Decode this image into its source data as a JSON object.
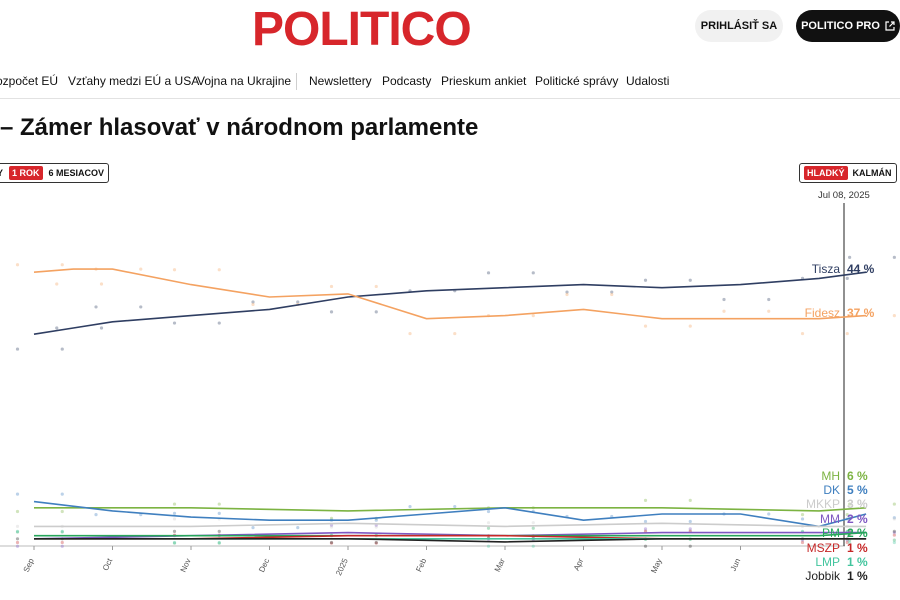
{
  "header": {
    "logo": "POLITICO",
    "login": "PRIHLÁSIŤ SA",
    "pro": "POLITICO PRO",
    "pro_icon": "external-link-icon"
  },
  "nav": {
    "items": [
      "ozpočet EÚ",
      "Vzťahy medzi EÚ a USA",
      "Vojna na Ukrajine",
      "Newslettery",
      "Podcasty",
      "Prieskum ankiet",
      "Politické správy",
      "Udalosti"
    ]
  },
  "page": {
    "title": "– Zámer hlasovať v národnom parlamente",
    "range_options": [
      "Y",
      "1 ROK",
      "6 MESIACOV"
    ],
    "range_active": "1 ROK",
    "smooth_options": [
      "HLADKÝ",
      "KALMÁN"
    ],
    "smooth_active": "HLADKÝ",
    "cursor_date": "Jul 08, 2025"
  },
  "chart_data": {
    "type": "line",
    "x_ticks": [
      "Sep",
      "Oct",
      "Nov",
      "Dec",
      "2025",
      "Feb",
      "Mar",
      "Apr",
      "May",
      "Jun"
    ],
    "ylim": [
      0,
      50
    ],
    "series": [
      {
        "name": "Tisza",
        "label": "44 %",
        "color": "#2f3e62",
        "x": [
          0,
          0.5,
          1,
          2,
          3,
          4,
          5,
          6,
          7,
          8,
          9,
          10,
          10.6
        ],
        "y": [
          34,
          35,
          36,
          37,
          38,
          40,
          41,
          41.5,
          42,
          41.5,
          42,
          43,
          44
        ]
      },
      {
        "name": "Fidesz",
        "label": "37 %",
        "color": "#f4a261",
        "x": [
          0,
          0.5,
          1,
          2,
          3,
          4,
          5,
          6,
          7,
          8,
          9,
          10,
          10.6
        ],
        "y": [
          44,
          44.5,
          44.5,
          42,
          40,
          40.5,
          36.5,
          37,
          38,
          36.5,
          36.5,
          36.5,
          37
        ]
      },
      {
        "name": "MH",
        "label": "6 %",
        "color": "#7cb342",
        "x": [
          0,
          2,
          4,
          6,
          8,
          10,
          10.6
        ],
        "y": [
          6,
          6,
          5.5,
          6,
          6,
          5.5,
          6
        ]
      },
      {
        "name": "DK",
        "label": "5 %",
        "color": "#3f7fbf",
        "x": [
          0,
          1,
          2,
          3,
          4,
          5,
          6,
          7,
          8,
          9,
          10,
          10.6
        ],
        "y": [
          7,
          5.5,
          4.5,
          4,
          4,
          5,
          6,
          4,
          5,
          5,
          3,
          5
        ]
      },
      {
        "name": "MKKP",
        "label": "3 %",
        "color": "#cccccc",
        "x": [
          0,
          2,
          4,
          6,
          8,
          10,
          10.6
        ],
        "y": [
          3,
          3,
          3.5,
          3,
          3.5,
          3,
          3
        ]
      },
      {
        "name": "MM",
        "label": "2 %",
        "color": "#7e57c2",
        "x": [
          0,
          2,
          4,
          6,
          8,
          10,
          10.6
        ],
        "y": [
          1,
          1.5,
          2,
          1.5,
          2,
          2,
          2
        ]
      },
      {
        "name": "PM",
        "label": "2 %",
        "color": "#26a65b",
        "x": [
          0,
          2,
          4,
          6,
          8,
          10,
          10.6
        ],
        "y": [
          1.5,
          1.5,
          1.5,
          1.5,
          1.5,
          1.5,
          2
        ]
      },
      {
        "name": "MSZP",
        "label": "1 %",
        "color": "#c62828",
        "x": [
          0,
          2,
          4,
          6,
          8,
          10,
          10.6
        ],
        "y": [
          1,
          1,
          1.5,
          1.5,
          1,
          1,
          1
        ]
      },
      {
        "name": "LMP",
        "label": "1 %",
        "color": "#43c59e",
        "x": [
          0,
          2,
          4,
          6,
          8,
          10,
          10.6
        ],
        "y": [
          1,
          1,
          1,
          1,
          1,
          1,
          1
        ]
      },
      {
        "name": "Jobbik",
        "label": "1 %",
        "color": "#222222",
        "x": [
          0,
          2,
          4,
          6,
          8,
          10,
          10.6
        ],
        "y": [
          1,
          1,
          1,
          0.5,
          1,
          1,
          1
        ]
      }
    ]
  }
}
